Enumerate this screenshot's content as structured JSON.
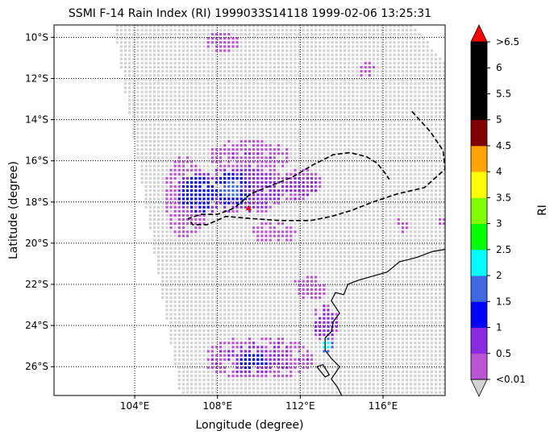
{
  "chart_data": {
    "type": "heatmap",
    "title": "SSMI F-14 Rain Index (RI) 1999033S14118 1999-02-06 13:25:31",
    "xlabel": "Longitude (degree)",
    "ylabel": "Latitude (degree)",
    "xlim": [
      100.1,
      119.0
    ],
    "ylim": [
      -27.4,
      -9.4
    ],
    "grid": true,
    "x_ticks": [
      {
        "value": 104,
        "label": "104°E"
      },
      {
        "value": 108,
        "label": "108°E"
      },
      {
        "value": 112,
        "label": "112°E"
      },
      {
        "value": 116,
        "label": "116°E"
      }
    ],
    "y_ticks": [
      {
        "value": -10,
        "label": "10°S"
      },
      {
        "value": -12,
        "label": "12°S"
      },
      {
        "value": -14,
        "label": "14°S"
      },
      {
        "value": -16,
        "label": "16°S"
      },
      {
        "value": -18,
        "label": "18°S"
      },
      {
        "value": -20,
        "label": "20°S"
      },
      {
        "value": -22,
        "label": "22°S"
      },
      {
        "value": -24,
        "label": "24°S"
      },
      {
        "value": -26,
        "label": "26°S"
      }
    ],
    "colorbar": {
      "label": "RI",
      "tick_labels": [
        "<0.01",
        "0.5",
        "1",
        "1.5",
        "2",
        "2.5",
        "3",
        "3.5",
        "4",
        "4.5",
        "5",
        "5.5",
        "6",
        ">6.5"
      ],
      "colors": [
        "#ba55d3",
        "#8a2be2",
        "#0000ff",
        "#4169e1",
        "#00ffff",
        "#00ff00",
        "#7fff00",
        "#ffff00",
        "#ffa500",
        "#800000",
        "#000000",
        "#000000",
        "#000000"
      ],
      "under_color": "#d3d3d3",
      "over_color": "#ff0000"
    },
    "swath_color": "#d3d3d3",
    "swath_outline": [
      [
        103.0,
        -9.4
      ],
      [
        117.4,
        -9.4
      ],
      [
        119.0,
        -11.2
      ],
      [
        119.0,
        -27.4
      ],
      [
        106.2,
        -27.4
      ],
      [
        103.6,
        -13.0
      ]
    ],
    "rain_regions": [
      {
        "lon": [
          105.5,
          107.5
        ],
        "lat": [
          -19.8,
          -15.8
        ],
        "ri": 0.3
      },
      {
        "lon": [
          107.4,
          111.2
        ],
        "lat": [
          -18.6,
          -16.2
        ],
        "ri": 0.6
      },
      {
        "lon": [
          106.0,
          108.2
        ],
        "lat": [
          -18.6,
          -16.6
        ],
        "ri": 1.2
      },
      {
        "lon": [
          107.8,
          109.6
        ],
        "lat": [
          -18.1,
          -16.6
        ],
        "ri": 1.6
      },
      {
        "lon": [
          107.6,
          111.4
        ],
        "lat": [
          -16.6,
          -15.0
        ],
        "ri": 0.4
      },
      {
        "lon": [
          110.8,
          113.0
        ],
        "lat": [
          -18.0,
          -16.4
        ],
        "ri": 0.5
      },
      {
        "lon": [
          109.6,
          111.8
        ],
        "lat": [
          -20.0,
          -19.0
        ],
        "ri": 0.3
      },
      {
        "lon": [
          107.4,
          112.6
        ],
        "lat": [
          -26.6,
          -24.6
        ],
        "ri": 0.5
      },
      {
        "lon": [
          108.8,
          110.6
        ],
        "lat": [
          -26.4,
          -25.0
        ],
        "ri": 1.1
      },
      {
        "lon": [
          111.6,
          113.2
        ],
        "lat": [
          -22.8,
          -21.6
        ],
        "ri": 0.3
      },
      {
        "lon": [
          112.6,
          113.8
        ],
        "lat": [
          -24.8,
          -23.0
        ],
        "ri": 0.6
      },
      {
        "lon": [
          113.0,
          113.6
        ],
        "lat": [
          -25.3,
          -24.6
        ],
        "ri": 2.3
      },
      {
        "lon": [
          107.4,
          109.0
        ],
        "lat": [
          -10.8,
          -9.8
        ],
        "ri": 0.3
      },
      {
        "lon": [
          114.8,
          115.6
        ],
        "lat": [
          -12.0,
          -11.2
        ],
        "ri": 0.3
      },
      {
        "lon": [
          116.6,
          117.2
        ],
        "lat": [
          -19.6,
          -18.8
        ],
        "ri": 0.3
      },
      {
        "lon": [
          118.6,
          119.0
        ],
        "lat": [
          -19.2,
          -18.6
        ],
        "ri": 0.3
      }
    ],
    "track": [
      [
        117.4,
        -13.6
      ],
      [
        118.3,
        -14.6
      ],
      [
        118.9,
        -15.5
      ],
      [
        119.0,
        -16.4
      ],
      [
        118.0,
        -17.3
      ],
      [
        116.7,
        -17.6
      ],
      [
        115.5,
        -18.0
      ],
      [
        114.5,
        -18.4
      ],
      [
        113.5,
        -18.7
      ],
      [
        112.5,
        -18.9
      ],
      [
        111.0,
        -18.9
      ],
      [
        109.6,
        -18.8
      ],
      [
        108.4,
        -18.7
      ],
      [
        107.5,
        -19.1
      ],
      [
        106.8,
        -19.1
      ],
      [
        106.6,
        -18.8
      ],
      [
        107.2,
        -18.6
      ],
      [
        108.0,
        -18.6
      ],
      [
        108.8,
        -18.3
      ],
      [
        109.6,
        -17.6
      ],
      [
        110.6,
        -17.2
      ],
      [
        111.6,
        -16.8
      ],
      [
        112.6,
        -16.2
      ],
      [
        113.6,
        -15.7
      ],
      [
        114.4,
        -15.6
      ],
      [
        115.2,
        -15.8
      ],
      [
        115.7,
        -16.1
      ],
      [
        116.1,
        -16.6
      ],
      [
        116.3,
        -16.9
      ]
    ],
    "storm_center": {
      "lon": 109.5,
      "lat": -18.3
    },
    "coastline": [
      [
        119.0,
        -20.3
      ],
      [
        118.4,
        -20.4
      ],
      [
        117.6,
        -20.7
      ],
      [
        116.8,
        -20.9
      ],
      [
        116.2,
        -21.4
      ],
      [
        115.5,
        -21.6
      ],
      [
        114.8,
        -21.8
      ],
      [
        114.3,
        -22.0
      ],
      [
        114.1,
        -22.5
      ],
      [
        113.7,
        -22.4
      ],
      [
        113.5,
        -22.8
      ],
      [
        113.9,
        -23.4
      ],
      [
        113.6,
        -23.8
      ],
      [
        113.5,
        -24.3
      ],
      [
        113.2,
        -24.6
      ],
      [
        113.2,
        -25.2
      ],
      [
        113.5,
        -25.6
      ],
      [
        113.9,
        -26.0
      ],
      [
        113.5,
        -26.6
      ],
      [
        113.8,
        -27.0
      ],
      [
        114.0,
        -27.4
      ]
    ],
    "coastline_islands": [
      [
        [
          112.8,
          -26.0
        ],
        [
          113.1,
          -25.9
        ],
        [
          113.4,
          -26.4
        ],
        [
          113.2,
          -26.5
        ],
        [
          112.8,
          -26.0
        ]
      ]
    ]
  }
}
